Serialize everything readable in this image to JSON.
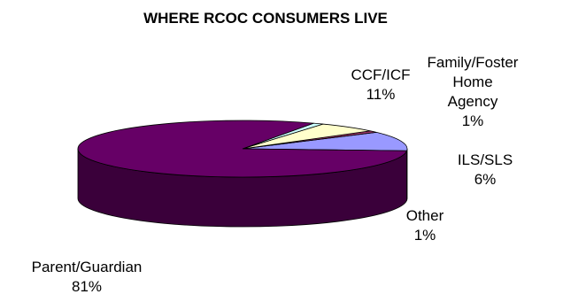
{
  "chart_data": {
    "type": "pie",
    "title": "WHERE RCOC CONSUMERS LIVE",
    "style": "3d",
    "slices": [
      {
        "label_lines": [
          "CCF/ICF",
          "11%"
        ],
        "value": 11,
        "color": "#9999ff",
        "side_color": "#5c5ca6"
      },
      {
        "label_lines": [
          "Family/Foster",
          "Home",
          "Agency",
          "1%"
        ],
        "value": 1,
        "color": "#993366",
        "side_color": "#5a1d3c"
      },
      {
        "label_lines": [
          "ILS/SLS",
          "6%"
        ],
        "value": 6,
        "color": "#ffffcc",
        "side_color": "#9a9a6e"
      },
      {
        "label_lines": [
          "Other",
          "1%"
        ],
        "value": 1,
        "color": "#ccffff",
        "side_color": "#5f7f7f"
      },
      {
        "label_lines": [
          "Parent/Guardian",
          "81%"
        ],
        "value": 81,
        "color": "#660066",
        "side_color": "#3a003a"
      }
    ]
  }
}
